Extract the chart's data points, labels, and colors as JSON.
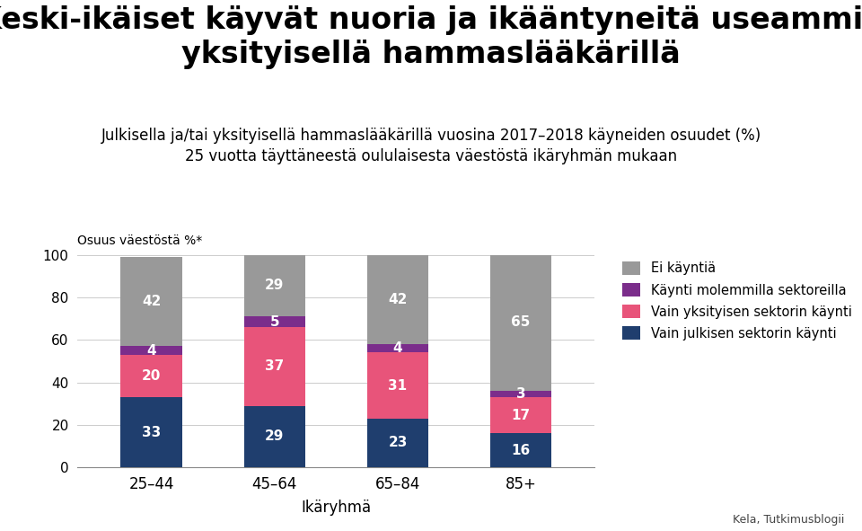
{
  "title": "Keski-ikäiset käyvät nuoria ja ikääntyneitä useammin\nyksityisellä hammaslääkärillä",
  "subtitle": "Julkisella ja/tai yksityisellä hammaslääkärillä vuosina 2017–2018 käyneiden osuudet (%)\n25 vuotta täyttäneestä oululaisesta väestöstä ikäryhmän mukaan",
  "ylabel": "Osuus väestöstä %*",
  "xlabel": "Ikäryhmä",
  "source": "Kela, Tutkimusblogii",
  "categories": [
    "25–44",
    "45–64",
    "65–84",
    "85+"
  ],
  "series": {
    "julkinen": [
      33,
      29,
      23,
      16
    ],
    "yksityinen": [
      20,
      37,
      31,
      17
    ],
    "molemmat": [
      4,
      5,
      4,
      3
    ],
    "ei_kayntia": [
      42,
      29,
      42,
      65
    ]
  },
  "colors": {
    "julkinen": "#1f3e6e",
    "yksityinen": "#e8547a",
    "molemmat": "#7b2d8b",
    "ei_kayntia": "#999999"
  },
  "legend_labels": {
    "ei_kayntia": "Ei käyntiä",
    "molemmat": "Käynti molemmilla sektoreilla",
    "yksityinen": "Vain yksityisen sektorin käynti",
    "julkinen": "Vain julkisen sektorin käynti"
  },
  "ylim": [
    0,
    100
  ],
  "background_color": "#ffffff",
  "title_fontsize": 24,
  "subtitle_fontsize": 12,
  "label_fontsize": 11,
  "bar_width": 0.5
}
